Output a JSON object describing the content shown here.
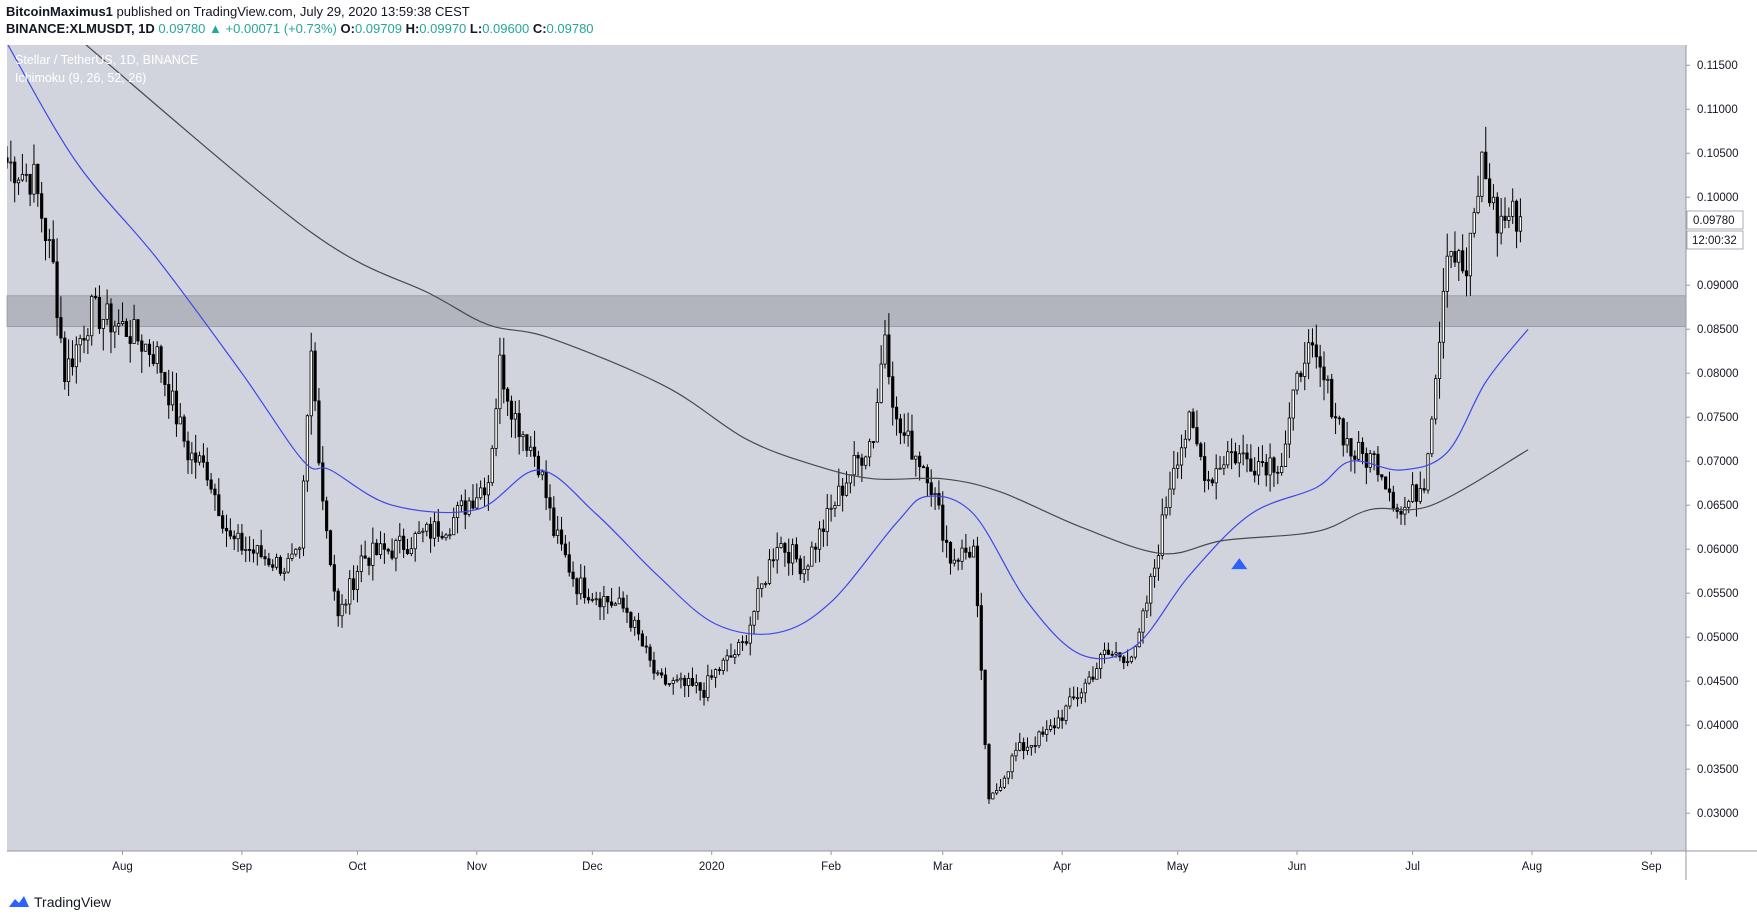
{
  "header": {
    "author": "BitcoinMaximus1",
    "published": " published on TradingView.com, July 29, 2020 13:59:38 CEST",
    "symbol": "BINANCE:XLMUSDT, 1D",
    "last": "0.09780",
    "change_arrow": "▲",
    "change": "+0.00071 (+0.73%)",
    "o_label": "O:",
    "o": "0.09709",
    "h_label": "H:",
    "h": "0.09970",
    "l_label": "L:",
    "l": "0.09600",
    "c_label": "C:",
    "c": "0.09780"
  },
  "legend": {
    "title": "Stellar / TetherUS, 1D, BINANCE",
    "indicator": "Ichimoku (9, 26, 52, 26)"
  },
  "price_label": "0.09780",
  "countdown": "12:00:32",
  "watermark": "TradingView",
  "icons": {
    "watermark": "tradingview-logo-icon",
    "signal": "up-triangle-icon"
  },
  "colors": {
    "plot_bg": "#d1d4dc",
    "zone": "#b2b5be",
    "blue_line": "#3f48e8",
    "grey_line": "#4a4a4a",
    "candle": "#000000",
    "signal": "#2962ff",
    "axis_text": "#131722",
    "teal": "#26a69a"
  },
  "chart_data": {
    "type": "candlestick",
    "title": "Stellar / TetherUS, 1D, BINANCE",
    "x_axis_ticks": [
      "Aug",
      "Sep",
      "Oct",
      "Nov",
      "Dec",
      "2020",
      "Feb",
      "Mar",
      "Apr",
      "May",
      "Jun",
      "Jul",
      "Aug",
      "Sep"
    ],
    "y_axis_ticks": [
      "0.11500",
      "0.11000",
      "0.10500",
      "0.10000",
      "0.09000",
      "0.08500",
      "0.08000",
      "0.07500",
      "0.07000",
      "0.06500",
      "0.06000",
      "0.05500",
      "0.05000",
      "0.04500",
      "0.04000",
      "0.03500",
      "0.03000"
    ],
    "ylim": [
      0.0257,
      0.1173
    ],
    "x_range": [
      "2019-07-02",
      "2020-09-10"
    ],
    "resistance_zone": [
      0.0853,
      0.0888
    ],
    "signal_marker": {
      "date": "2020-05-17",
      "value": 0.0583
    },
    "close_anchors": [
      {
        "date": "2019-07-02",
        "value": 0.104
      },
      {
        "date": "2019-07-09",
        "value": 0.102
      },
      {
        "date": "2019-07-14",
        "value": 0.092
      },
      {
        "date": "2019-07-17",
        "value": 0.08
      },
      {
        "date": "2019-07-24",
        "value": 0.087
      },
      {
        "date": "2019-08-02",
        "value": 0.085
      },
      {
        "date": "2019-08-10",
        "value": 0.082
      },
      {
        "date": "2019-08-18",
        "value": 0.071
      },
      {
        "date": "2019-08-23",
        "value": 0.069
      },
      {
        "date": "2019-08-29",
        "value": 0.061
      },
      {
        "date": "2019-09-12",
        "value": 0.058
      },
      {
        "date": "2019-09-16",
        "value": 0.059
      },
      {
        "date": "2019-09-19",
        "value": 0.082
      },
      {
        "date": "2019-09-22",
        "value": 0.066
      },
      {
        "date": "2019-09-26",
        "value": 0.052
      },
      {
        "date": "2019-10-02",
        "value": 0.059
      },
      {
        "date": "2019-10-10",
        "value": 0.06
      },
      {
        "date": "2019-10-25",
        "value": 0.063
      },
      {
        "date": "2019-11-04",
        "value": 0.068
      },
      {
        "date": "2019-11-07",
        "value": 0.081
      },
      {
        "date": "2019-11-11",
        "value": 0.075
      },
      {
        "date": "2019-11-17",
        "value": 0.07
      },
      {
        "date": "2019-11-21",
        "value": 0.062
      },
      {
        "date": "2019-11-27",
        "value": 0.056
      },
      {
        "date": "2019-12-10",
        "value": 0.053
      },
      {
        "date": "2019-12-18",
        "value": 0.045
      },
      {
        "date": "2019-12-30",
        "value": 0.044
      },
      {
        "date": "2020-01-02",
        "value": 0.046
      },
      {
        "date": "2020-01-09",
        "value": 0.049
      },
      {
        "date": "2020-01-18",
        "value": 0.061
      },
      {
        "date": "2020-01-25",
        "value": 0.058
      },
      {
        "date": "2020-02-05",
        "value": 0.068
      },
      {
        "date": "2020-02-12",
        "value": 0.073
      },
      {
        "date": "2020-02-15",
        "value": 0.085
      },
      {
        "date": "2020-02-18",
        "value": 0.074
      },
      {
        "date": "2020-02-26",
        "value": 0.069
      },
      {
        "date": "2020-03-03",
        "value": 0.059
      },
      {
        "date": "2020-03-09",
        "value": 0.06
      },
      {
        "date": "2020-03-12",
        "value": 0.038
      },
      {
        "date": "2020-03-13",
        "value": 0.031
      },
      {
        "date": "2020-03-20",
        "value": 0.037
      },
      {
        "date": "2020-03-28",
        "value": 0.039
      },
      {
        "date": "2020-04-06",
        "value": 0.044
      },
      {
        "date": "2020-04-12",
        "value": 0.048
      },
      {
        "date": "2020-04-20",
        "value": 0.048
      },
      {
        "date": "2020-04-25",
        "value": 0.058
      },
      {
        "date": "2020-04-30",
        "value": 0.07
      },
      {
        "date": "2020-05-04",
        "value": 0.074
      },
      {
        "date": "2020-05-09",
        "value": 0.068
      },
      {
        "date": "2020-05-14",
        "value": 0.071
      },
      {
        "date": "2020-05-21",
        "value": 0.07
      },
      {
        "date": "2020-05-28",
        "value": 0.07
      },
      {
        "date": "2020-06-03",
        "value": 0.083
      },
      {
        "date": "2020-06-08",
        "value": 0.079
      },
      {
        "date": "2020-06-15",
        "value": 0.071
      },
      {
        "date": "2020-06-22",
        "value": 0.07
      },
      {
        "date": "2020-06-28",
        "value": 0.064
      },
      {
        "date": "2020-07-04",
        "value": 0.068
      },
      {
        "date": "2020-07-07",
        "value": 0.08
      },
      {
        "date": "2020-07-10",
        "value": 0.095
      },
      {
        "date": "2020-07-15",
        "value": 0.091
      },
      {
        "date": "2020-07-19",
        "value": 0.104
      },
      {
        "date": "2020-07-23",
        "value": 0.097
      },
      {
        "date": "2020-07-26",
        "value": 0.098
      },
      {
        "date": "2020-07-29",
        "value": 0.0978
      }
    ],
    "series": [
      {
        "kind": "moving-average-blue",
        "points": [
          {
            "date": "2019-07-02",
            "value": 0.1175
          },
          {
            "date": "2019-07-20",
            "value": 0.104
          },
          {
            "date": "2019-08-10",
            "value": 0.093
          },
          {
            "date": "2019-09-01",
            "value": 0.08
          },
          {
            "date": "2019-09-17",
            "value": 0.07
          },
          {
            "date": "2019-09-24",
            "value": 0.069
          },
          {
            "date": "2019-10-10",
            "value": 0.065
          },
          {
            "date": "2019-11-01",
            "value": 0.0645
          },
          {
            "date": "2019-11-17",
            "value": 0.069
          },
          {
            "date": "2019-12-02",
            "value": 0.064
          },
          {
            "date": "2019-12-18",
            "value": 0.057
          },
          {
            "date": "2020-01-02",
            "value": 0.0515
          },
          {
            "date": "2020-01-18",
            "value": 0.0505
          },
          {
            "date": "2020-02-01",
            "value": 0.054
          },
          {
            "date": "2020-02-18",
            "value": 0.063
          },
          {
            "date": "2020-02-26",
            "value": 0.066
          },
          {
            "date": "2020-03-09",
            "value": 0.064
          },
          {
            "date": "2020-03-23",
            "value": 0.054
          },
          {
            "date": "2020-04-06",
            "value": 0.048
          },
          {
            "date": "2020-04-20",
            "value": 0.049
          },
          {
            "date": "2020-05-04",
            "value": 0.057
          },
          {
            "date": "2020-05-20",
            "value": 0.064
          },
          {
            "date": "2020-06-06",
            "value": 0.067
          },
          {
            "date": "2020-06-15",
            "value": 0.07
          },
          {
            "date": "2020-06-28",
            "value": 0.069
          },
          {
            "date": "2020-07-10",
            "value": 0.071
          },
          {
            "date": "2020-07-20",
            "value": 0.079
          },
          {
            "date": "2020-07-31",
            "value": 0.085
          }
        ]
      },
      {
        "kind": "moving-average-grey",
        "points": [
          {
            "date": "2019-07-22",
            "value": 0.1175
          },
          {
            "date": "2019-09-19",
            "value": 0.096
          },
          {
            "date": "2019-10-20",
            "value": 0.089
          },
          {
            "date": "2019-11-04",
            "value": 0.0855
          },
          {
            "date": "2019-11-20",
            "value": 0.084
          },
          {
            "date": "2019-12-20",
            "value": 0.0785
          },
          {
            "date": "2020-01-10",
            "value": 0.0725
          },
          {
            "date": "2020-01-28",
            "value": 0.0695
          },
          {
            "date": "2020-02-12",
            "value": 0.068
          },
          {
            "date": "2020-03-01",
            "value": 0.068
          },
          {
            "date": "2020-03-16",
            "value": 0.0665
          },
          {
            "date": "2020-04-06",
            "value": 0.0625
          },
          {
            "date": "2020-04-27",
            "value": 0.0595
          },
          {
            "date": "2020-05-13",
            "value": 0.061
          },
          {
            "date": "2020-06-06",
            "value": 0.062
          },
          {
            "date": "2020-06-20",
            "value": 0.0645
          },
          {
            "date": "2020-07-06",
            "value": 0.065
          },
          {
            "date": "2020-07-31",
            "value": 0.0713
          }
        ]
      }
    ]
  }
}
